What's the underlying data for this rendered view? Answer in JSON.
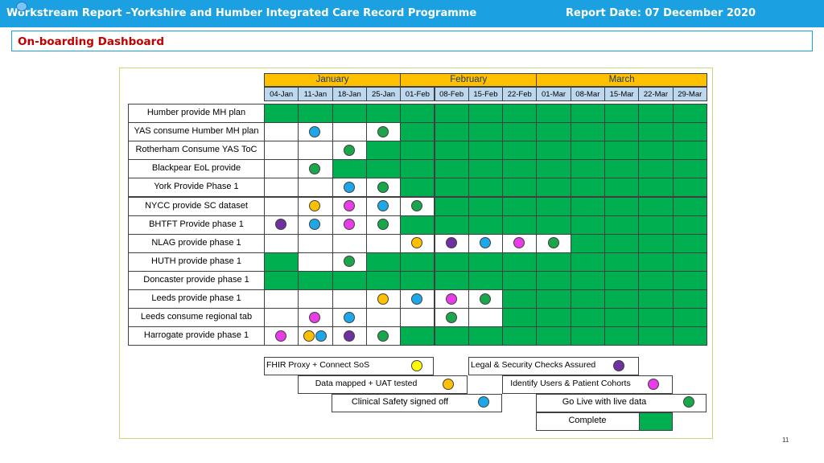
{
  "header": {
    "title": "Workstream Report –Yorkshire and Humber Integrated Care Record Programme",
    "report_date": "Report Date: 07 December 2020"
  },
  "subheader": {
    "title": "On-boarding Dashboard"
  },
  "colors": {
    "header_bg": "#1ba1e2",
    "green": "#00b050",
    "month_bg": "#ffc000",
    "week_bg": "#bdd7ee",
    "yellow": "#ffff00",
    "orange": "#ffc000",
    "blue": "#1ea7e8",
    "magenta": "#e83ce8",
    "purple": "#7030a0",
    "dot_green": "#1aa64a"
  },
  "months": [
    {
      "label": "January",
      "span": 4
    },
    {
      "label": "February",
      "span": 4
    },
    {
      "label": "March",
      "span": 5
    }
  ],
  "weeks": [
    "04-Jan",
    "11-Jan",
    "18-Jan",
    "25-Jan",
    "01-Feb",
    "08-Feb",
    "15-Feb",
    "22-Feb",
    "01-Mar",
    "08-Mar",
    "15-Mar",
    "22-Mar",
    "29-Mar"
  ],
  "rows": [
    {
      "label": "Humber provide MH plan",
      "green_from": 0,
      "extra_green": [],
      "dots": []
    },
    {
      "label": "YAS consume Humber MH plan",
      "green_from": 4,
      "extra_green": [],
      "dots": [
        {
          "col": 1,
          "status": "blue"
        },
        {
          "col": 3,
          "status": "green"
        }
      ]
    },
    {
      "label": "Rotherham Consume YAS ToC",
      "green_from": 3,
      "extra_green": [],
      "dots": [
        {
          "col": 2,
          "status": "green"
        }
      ]
    },
    {
      "label": "Blackpear EoL provide",
      "green_from": 2,
      "extra_green": [],
      "dots": [
        {
          "col": 1,
          "status": "green"
        }
      ]
    },
    {
      "label": "York Provide Phase 1",
      "green_from": 4,
      "extra_green": [],
      "dots": [
        {
          "col": 2,
          "status": "blue"
        },
        {
          "col": 3,
          "status": "green"
        }
      ]
    },
    {
      "label": "NYCC provide SC dataset",
      "green_from": 5,
      "extra_green": [],
      "dots": [
        {
          "col": 1,
          "status": "orange"
        },
        {
          "col": 2,
          "status": "magenta"
        },
        {
          "col": 3,
          "status": "blue"
        },
        {
          "col": 4,
          "status": "green"
        }
      ]
    },
    {
      "label": "BHTFT Provide phase 1",
      "green_from": 4,
      "extra_green": [],
      "dots": [
        {
          "col": 0,
          "status": "purple"
        },
        {
          "col": 1,
          "status": "blue"
        },
        {
          "col": 2,
          "status": "magenta"
        },
        {
          "col": 3,
          "status": "green"
        }
      ]
    },
    {
      "label": "NLAG provide phase 1",
      "green_from": 9,
      "extra_green": [],
      "dots": [
        {
          "col": 4,
          "status": "orange"
        },
        {
          "col": 5,
          "status": "purple"
        },
        {
          "col": 6,
          "status": "blue"
        },
        {
          "col": 7,
          "status": "magenta"
        },
        {
          "col": 8,
          "status": "green"
        }
      ]
    },
    {
      "label": "HUTH provide phase 1",
      "green_from": 3,
      "extra_green": [
        0
      ],
      "dots": [
        {
          "col": 2,
          "status": "green"
        }
      ]
    },
    {
      "label": "Doncaster provide phase 1",
      "green_from": 0,
      "extra_green": [],
      "dots": []
    },
    {
      "label": "Leeds provide phase 1",
      "green_from": 7,
      "extra_green": [],
      "dots": [
        {
          "col": 3,
          "status": "orange"
        },
        {
          "col": 4,
          "status": "blue"
        },
        {
          "col": 5,
          "status": "magenta"
        },
        {
          "col": 6,
          "status": "green"
        }
      ]
    },
    {
      "label": "Leeds consume regional tab",
      "green_from": 7,
      "extra_green": [],
      "dots": [
        {
          "col": 1,
          "status": "magenta"
        },
        {
          "col": 2,
          "status": "blue"
        },
        {
          "col": 5,
          "status": "green"
        }
      ]
    },
    {
      "label": "Harrogate provide phase 1",
      "green_from": 4,
      "extra_green": [],
      "dots": [
        {
          "col": 0,
          "status": "magenta"
        },
        {
          "col": 1,
          "status": "orange",
          "offset": -7
        },
        {
          "col": 1,
          "status": "blue",
          "offset": 8
        },
        {
          "col": 2,
          "status": "purple"
        },
        {
          "col": 3,
          "status": "green"
        }
      ]
    }
  ],
  "legend": [
    {
      "label": "FHIR Proxy + Connect SoS",
      "status": "yellow"
    },
    {
      "label": "Legal & Security Checks Assured",
      "status": "purple"
    },
    {
      "label": "Data mapped + UAT tested",
      "status": "orange"
    },
    {
      "label": "Identify Users & Patient Cohorts",
      "status": "magenta"
    },
    {
      "label": "Clinical Safety signed off",
      "status": "blue"
    },
    {
      "label": "Go Live with live data",
      "status": "green"
    },
    {
      "label": "Complete",
      "status": "complete"
    }
  ],
  "page_number": "11"
}
